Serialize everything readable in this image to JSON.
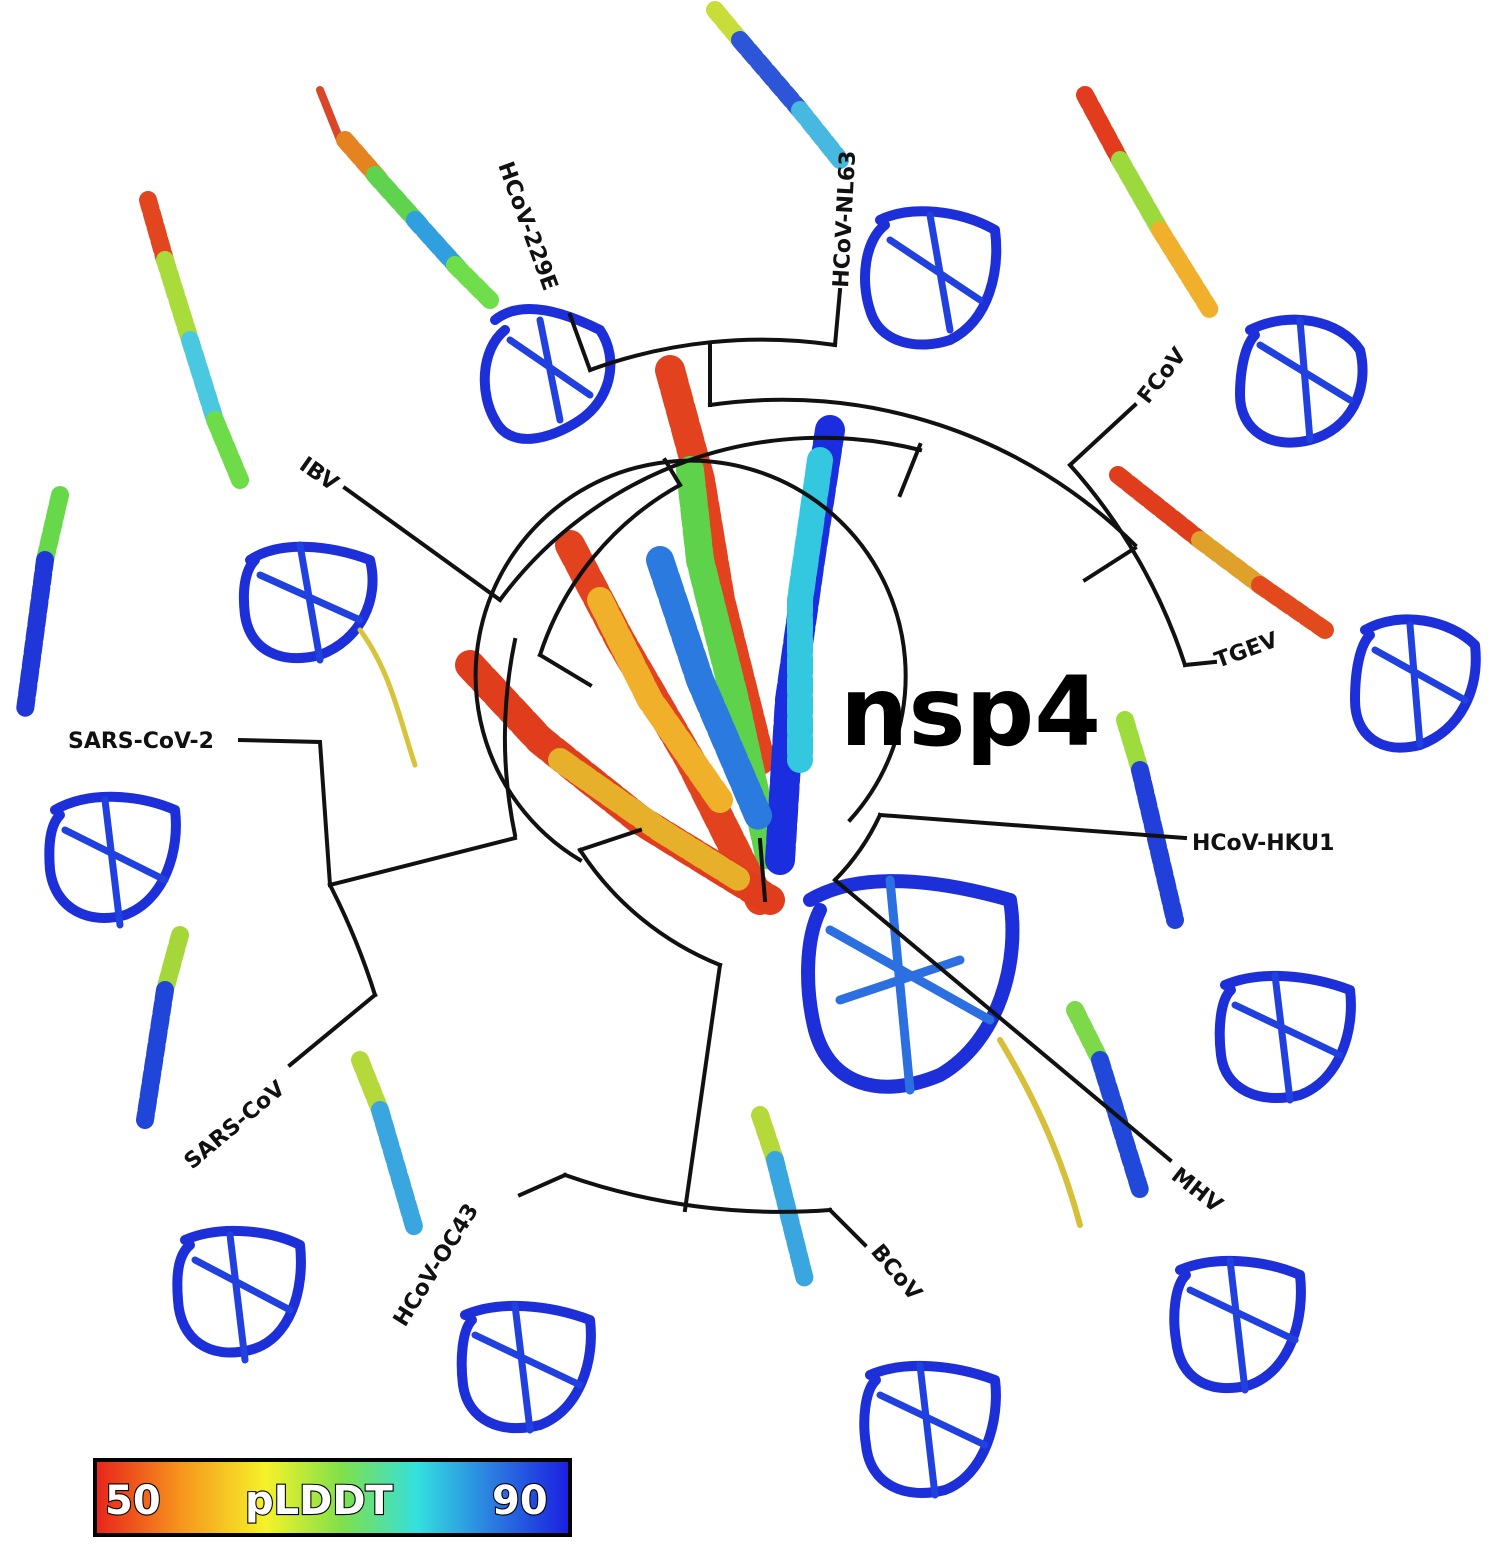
{
  "title": "nsp4",
  "colorbar": {
    "min_label": "50",
    "label": "pLDDT",
    "max_label": "90",
    "low_color": "#e8231b",
    "high_color": "#1a1ee0",
    "stops": [
      "#e8231b",
      "#f7941d",
      "#f5f22a",
      "#7fe04a",
      "#33e0e0",
      "#2a7ae0",
      "#1a1ee0"
    ]
  },
  "taxa": [
    {
      "name": "HCoV-229E"
    },
    {
      "name": "HCoV-NL63"
    },
    {
      "name": "FCoV"
    },
    {
      "name": "TGEV"
    },
    {
      "name": "IBV"
    },
    {
      "name": "SARS-CoV-2"
    },
    {
      "name": "SARS-CoV"
    },
    {
      "name": "HCoV-OC43"
    },
    {
      "name": "BCoV"
    },
    {
      "name": "MHV"
    },
    {
      "name": "HCoV-HKU1"
    }
  ]
}
